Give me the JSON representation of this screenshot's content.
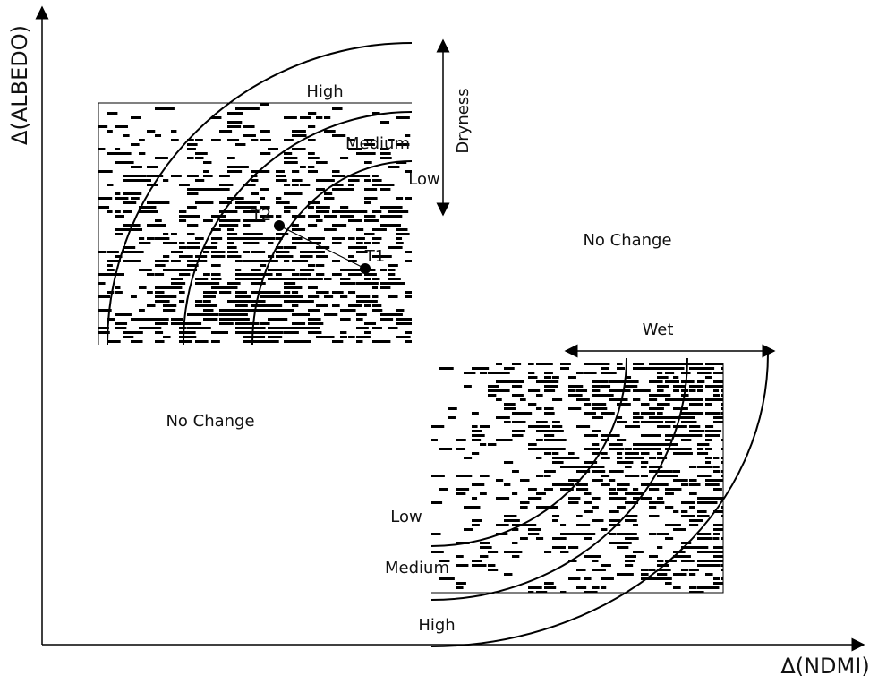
{
  "axes": {
    "y_label": "Δ(ALBEDO)",
    "x_label": "Δ(NDMI)"
  },
  "dryness_panel": {
    "zones": [
      "High",
      "Medium",
      "Low"
    ],
    "arrow_label": "Dryness",
    "points": [
      "T2",
      "T1"
    ]
  },
  "no_change_labels": [
    "No Change",
    "No Change"
  ],
  "wet_panel": {
    "arrow_label": "Wet",
    "zones": [
      "Low",
      "Medium",
      "High"
    ]
  }
}
